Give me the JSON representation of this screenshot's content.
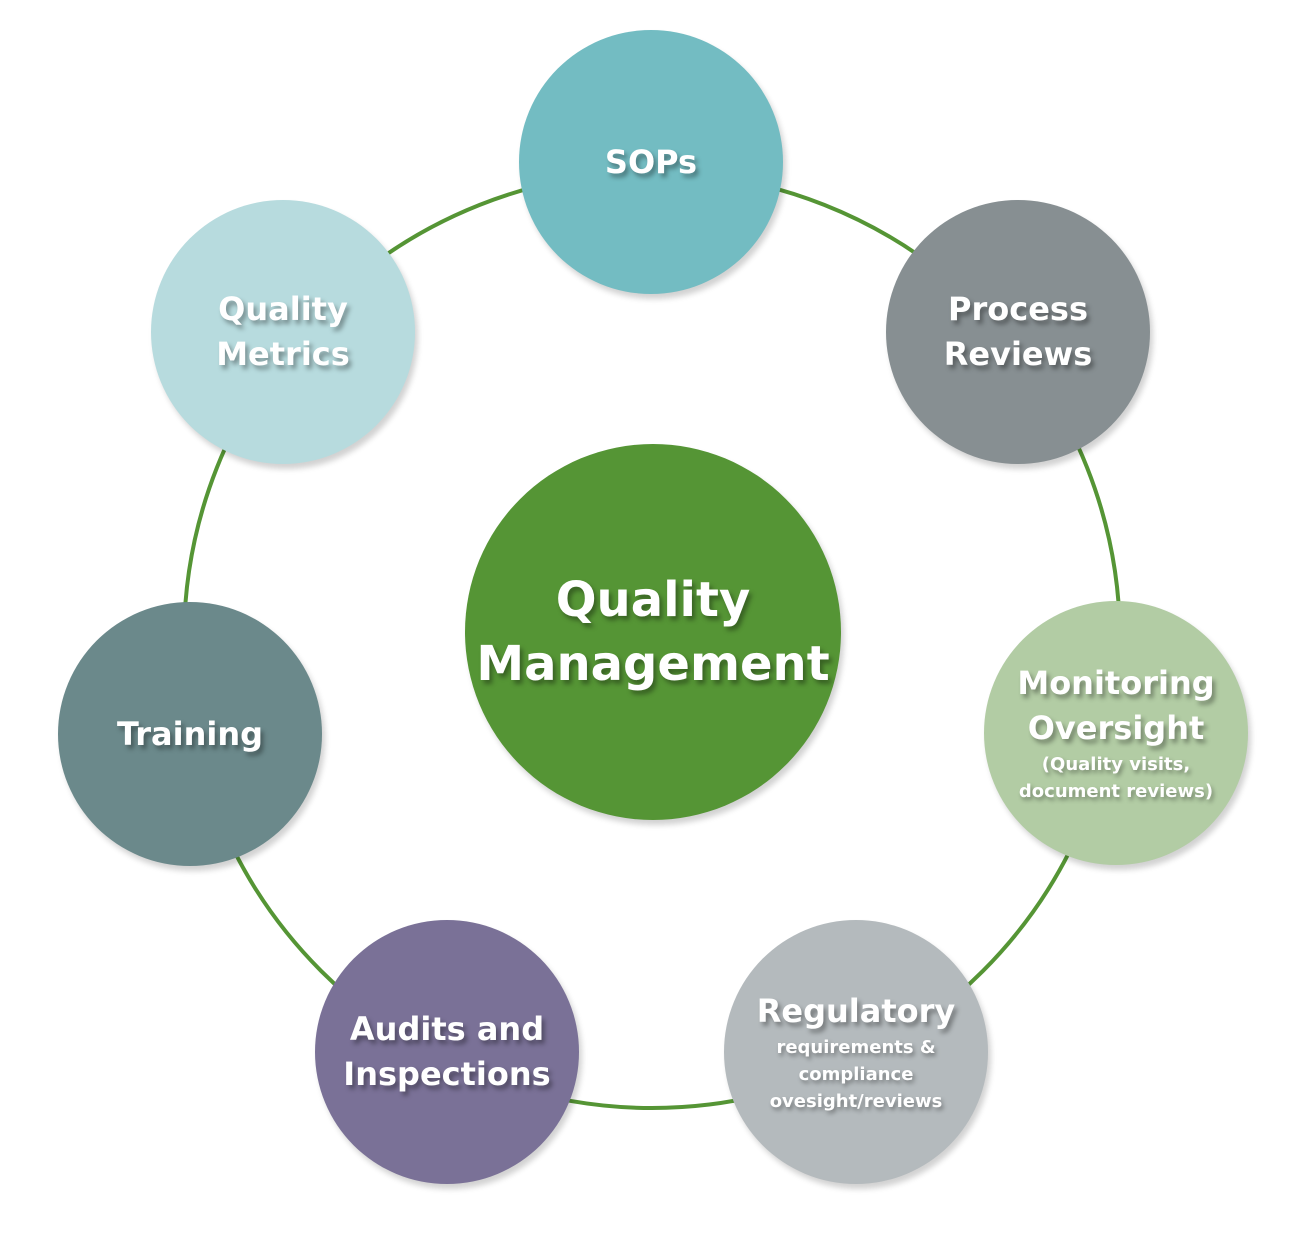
{
  "diagram": {
    "center": {
      "lines": [
        "Quality",
        "Management"
      ],
      "color": "#559535"
    },
    "ring_color": "#559535",
    "nodes": [
      {
        "id": "sops",
        "lines": [
          "SOPs"
        ],
        "sub": [],
        "color": "#73bcc2"
      },
      {
        "id": "process-reviews",
        "lines": [
          "Process",
          "Reviews"
        ],
        "sub": [],
        "color": "#878f92"
      },
      {
        "id": "monitoring-oversight",
        "lines": [
          "Monitoring",
          "Oversight"
        ],
        "sub": [
          "(Quality visits,",
          "document reviews)"
        ],
        "color": "#b2cca4"
      },
      {
        "id": "regulatory",
        "lines": [
          "Regulatory"
        ],
        "sub": [
          "requirements &",
          "compliance",
          "ovesight/reviews"
        ],
        "color": "#b4babd"
      },
      {
        "id": "audits-inspections",
        "lines": [
          "Audits and",
          "Inspections"
        ],
        "sub": [],
        "color": "#7a7197"
      },
      {
        "id": "training",
        "lines": [
          "Training"
        ],
        "sub": [],
        "color": "#6b898b"
      },
      {
        "id": "quality-metrics",
        "lines": [
          "Quality",
          "Metrics"
        ],
        "sub": [],
        "color": "#b7dbde"
      }
    ]
  }
}
